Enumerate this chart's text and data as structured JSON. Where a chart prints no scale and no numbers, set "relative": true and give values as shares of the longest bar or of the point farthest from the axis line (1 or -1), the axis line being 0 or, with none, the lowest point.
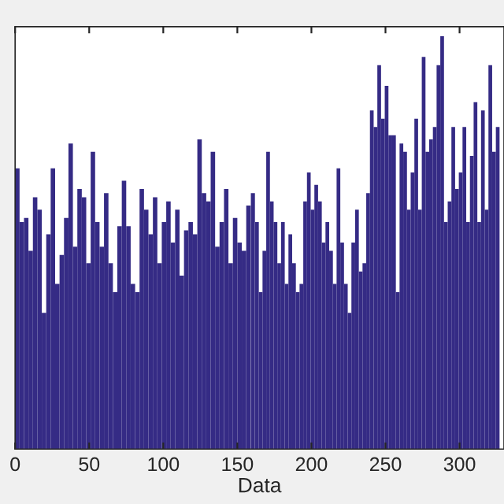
{
  "chart_data": {
    "type": "bar",
    "xlabel": "Data",
    "relative": true,
    "color": "#352b85",
    "grid": false,
    "tick_labels": "x",
    "xlim": [
      0,
      330
    ],
    "xticks": [
      0,
      50,
      100,
      150,
      200,
      250,
      300
    ],
    "x": [
      1.5,
      4.5,
      7.5,
      10.5,
      13.5,
      16.5,
      19.5,
      22.5,
      25.5,
      28.5,
      31.5,
      34.5,
      37.5,
      40.5,
      43.5,
      46.5,
      49.5,
      52.5,
      55.5,
      58.5,
      61.5,
      64.5,
      67.5,
      70.5,
      73.5,
      76.5,
      79.5,
      82.5,
      85.5,
      88.5,
      91.5,
      94.5,
      97.5,
      100.5,
      103.5,
      106.5,
      109.5,
      112.5,
      115.5,
      118.5,
      121.5,
      124.5,
      127.5,
      130.5,
      133.5,
      136.5,
      139.5,
      142.5,
      145.5,
      148.5,
      151.5,
      154.5,
      157.5,
      160.5,
      163.25,
      165.75,
      168.25,
      170.75,
      173.25,
      175.75,
      178.25,
      180.75,
      183.25,
      185.75,
      188.25,
      190.75,
      193.25,
      195.75,
      198.25,
      200.75,
      203.25,
      205.75,
      208.25,
      210.75,
      213.25,
      215.75,
      218.25,
      220.75,
      223.25,
      225.75,
      228.25,
      230.75,
      233.25,
      235.75,
      238.25,
      240.75,
      243.25,
      245.75,
      248.25,
      250.75,
      253.25,
      255.75,
      258.25,
      260.75,
      263.25,
      265.75,
      268.25,
      270.75,
      273.25,
      275.75,
      278.25,
      280.75,
      283.25,
      285.75,
      288.25,
      290.75,
      293.25,
      295.75,
      298.25,
      300.75,
      303.25,
      305.75,
      308.25,
      310.75,
      313.25,
      315.75,
      318.25,
      320.75,
      323.25,
      325.75
    ],
    "values": [
      0.68,
      0.55,
      0.56,
      0.48,
      0.61,
      0.58,
      0.33,
      0.52,
      0.68,
      0.4,
      0.47,
      0.56,
      0.74,
      0.49,
      0.63,
      0.61,
      0.45,
      0.72,
      0.55,
      0.49,
      0.62,
      0.45,
      0.38,
      0.54,
      0.65,
      0.54,
      0.4,
      0.38,
      0.63,
      0.58,
      0.52,
      0.61,
      0.45,
      0.55,
      0.6,
      0.5,
      0.58,
      0.42,
      0.53,
      0.55,
      0.52,
      0.75,
      0.62,
      0.6,
      0.72,
      0.49,
      0.55,
      0.63,
      0.45,
      0.56,
      0.5,
      0.48,
      0.59,
      0.62,
      0.55,
      0.38,
      0.48,
      0.72,
      0.6,
      0.55,
      0.45,
      0.55,
      0.4,
      0.52,
      0.45,
      0.38,
      0.4,
      0.6,
      0.67,
      0.58,
      0.64,
      0.6,
      0.5,
      0.55,
      0.48,
      0.4,
      0.68,
      0.5,
      0.4,
      0.33,
      0.5,
      0.58,
      0.43,
      0.45,
      0.62,
      0.82,
      0.78,
      0.93,
      0.8,
      0.88,
      0.76,
      0.76,
      0.38,
      0.74,
      0.72,
      0.58,
      0.67,
      0.8,
      0.58,
      0.95,
      0.72,
      0.75,
      0.78,
      0.93,
      1.0,
      0.55,
      0.6,
      0.78,
      0.63,
      0.67,
      0.78,
      0.55,
      0.71,
      0.84,
      0.55,
      0.82,
      0.58,
      0.93,
      0.72,
      0.78
    ]
  }
}
